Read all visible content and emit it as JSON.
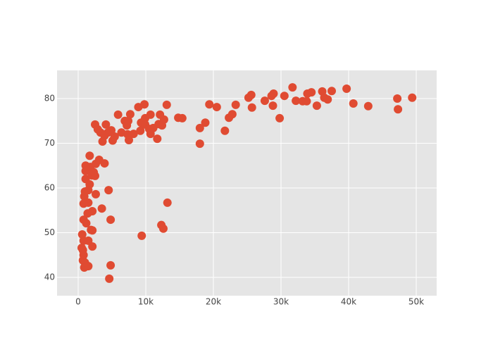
{
  "chart_data": {
    "type": "scatter",
    "color": "#e04b32",
    "grid": true,
    "xlim": [
      -3125,
      53020
    ],
    "ylim": [
      35.9,
      86.3
    ],
    "xticks": [
      0,
      {
        "value": 10000,
        "label": "10k"
      },
      {
        "value": 20000,
        "label": "20k"
      },
      {
        "value": 30000,
        "label": "30k"
      },
      {
        "value": 40000,
        "label": "40k"
      },
      {
        "value": 50000,
        "label": "50k"
      }
    ],
    "yticks": [
      40,
      50,
      60,
      70,
      80
    ],
    "x": [
      520,
      600,
      700,
      800,
      700,
      1000,
      900,
      1500,
      4800,
      4600,
      800,
      1500,
      2100,
      800,
      1200,
      1900,
      2100,
      1400,
      2100,
      1500,
      800,
      900,
      1000,
      1500,
      2600,
      3500,
      4800,
      4500,
      1100,
      1700,
      1100,
      2000,
      2500,
      1100,
      1800,
      2600,
      2300,
      3100,
      3900,
      1700,
      2500,
      2900,
      3300,
      3600,
      3900,
      4100,
      4400,
      4900,
      5100,
      5400,
      5900,
      6400,
      6900,
      7200,
      7400,
      7700,
      7500,
      7300,
      8200,
      8900,
      9200,
      9300,
      9800,
      9900,
      9900,
      10500,
      10700,
      10700,
      11100,
      11700,
      11900,
      12100,
      12400,
      12700,
      13100,
      12300,
      12600,
      13200,
      9400,
      14800,
      15400,
      18000,
      18000,
      18800,
      19400,
      20500,
      21700,
      22300,
      22800,
      23300,
      25200,
      25600,
      25700,
      27600,
      28600,
      28900,
      28800,
      29800,
      30500,
      31700,
      32200,
      33200,
      33800,
      33900,
      34500,
      35300,
      36100,
      36400,
      36900,
      37500,
      39700,
      40700,
      42900,
      47200,
      47300,
      49400
    ],
    "values": [
      46.6,
      49.6,
      46.1,
      45.0,
      43.8,
      43.3,
      42.2,
      42.5,
      42.7,
      39.7,
      48.2,
      48.2,
      46.9,
      52.9,
      52.1,
      50.6,
      50.5,
      54.3,
      54.8,
      56.7,
      56.5,
      58.1,
      59.2,
      59.5,
      58.6,
      55.4,
      52.9,
      59.5,
      62.0,
      60.8,
      63.8,
      62.8,
      62.7,
      65.0,
      64.7,
      65.4,
      63.5,
      66.3,
      65.5,
      67.2,
      74.2,
      73.1,
      72.4,
      70.4,
      71.7,
      74.2,
      72.4,
      72.9,
      70.6,
      71.5,
      76.4,
      72.4,
      75.0,
      74.0,
      75.0,
      76.5,
      70.7,
      72.0,
      72.1,
      78.1,
      72.8,
      74.6,
      78.7,
      75.6,
      74.2,
      73.2,
      72.1,
      76.4,
      73.4,
      71.0,
      74.3,
      76.4,
      74.0,
      75.3,
      78.6,
      51.7,
      50.9,
      56.7,
      49.3,
      75.7,
      75.6,
      69.9,
      73.4,
      74.6,
      78.7,
      78.1,
      72.8,
      75.7,
      76.5,
      78.6,
      80.2,
      80.8,
      78.0,
      79.5,
      80.6,
      81.1,
      78.4,
      75.6,
      80.6,
      82.5,
      79.5,
      79.4,
      79.4,
      81.1,
      81.4,
      78.4,
      81.6,
      80.2,
      79.8,
      81.7,
      82.2,
      78.9,
      78.3,
      80.0,
      77.6,
      80.2
    ]
  }
}
